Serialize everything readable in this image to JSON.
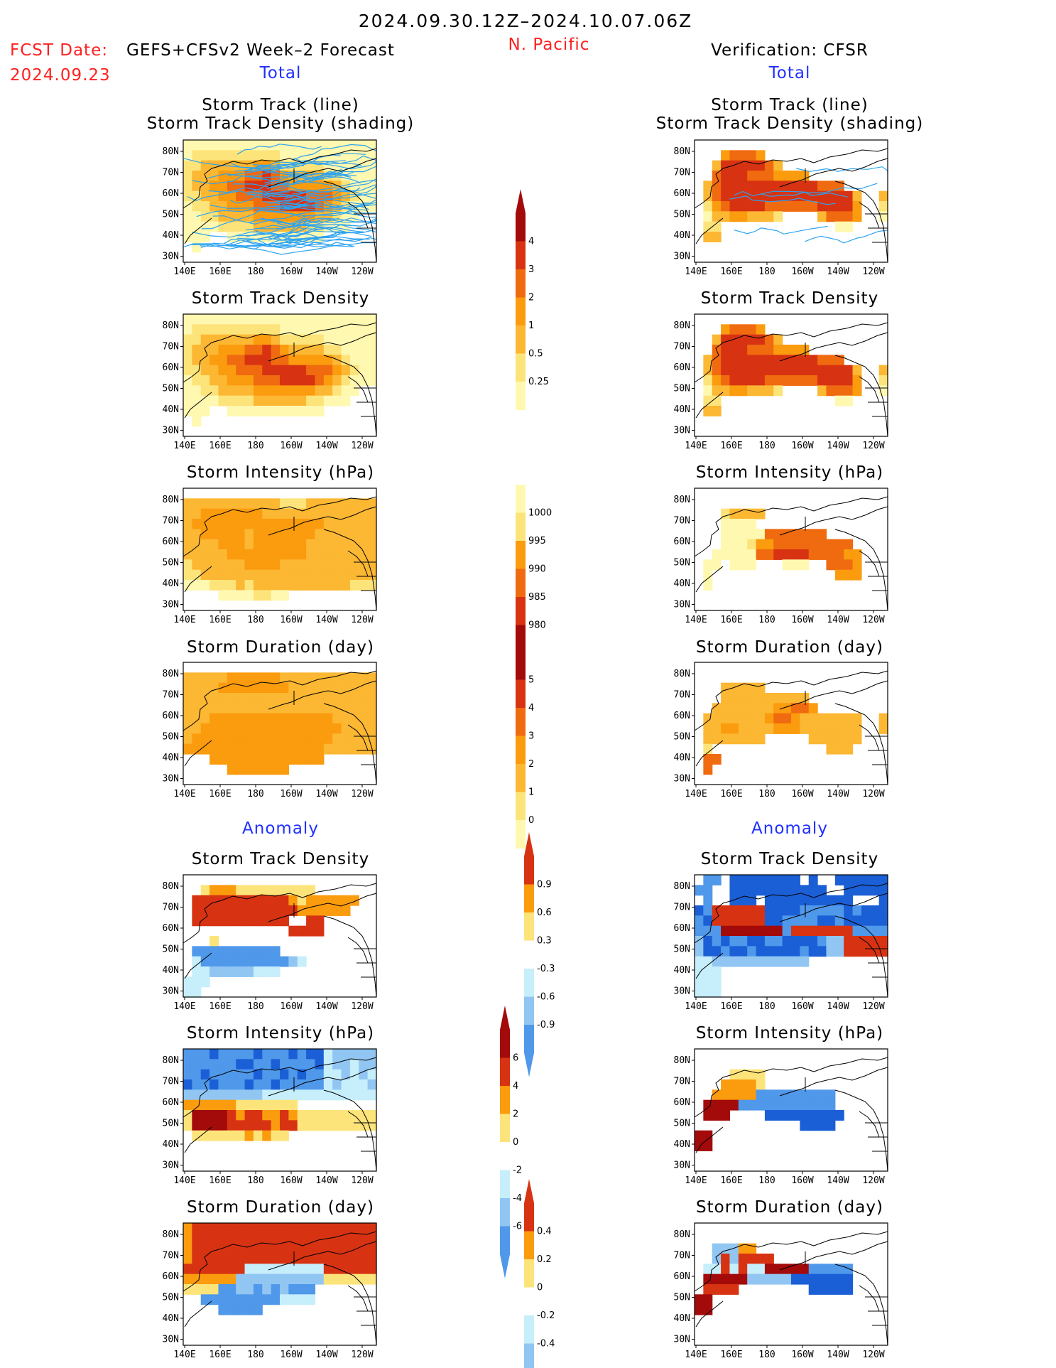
{
  "header": {
    "title": "2024.09.30.12Z–2024.10.07.06Z",
    "fcst_date_label": "FCST Date:",
    "fcst_date": "2024.09.23",
    "forecast_name": "GEFS+CFSv2 Week–2 Forecast",
    "region": "N. Pacific",
    "verification": "Verification: CFSR"
  },
  "sections": {
    "total_left": "Total",
    "total_right": "Total",
    "anomaly_left": "Anomaly",
    "anomaly_right": "Anomaly"
  },
  "panel_titles": {
    "track_line": "Storm Track (line)",
    "track_shading": "Storm Track Density (shading)",
    "density": "Storm Track Density",
    "intensity": "Storm Intensity (hPa)",
    "duration": "Storm Duration (day)"
  },
  "axes": {
    "lon_ticks": [
      "140E",
      "160E",
      "180",
      "160W",
      "140W",
      "120W"
    ],
    "lat_ticks": [
      "80N",
      "70N",
      "60N",
      "50N",
      "40N",
      "30N"
    ]
  },
  "colors": {
    "c0": "#fff8b0",
    "c1": "#fde47a",
    "c2": "#fcb733",
    "c3": "#fb9b0e",
    "c4": "#f06a10",
    "c5": "#d73312",
    "c6": "#a30a0a",
    "n1": "#c7eefb",
    "n2": "#91c6f3",
    "n3": "#4f98ea",
    "n4": "#1b5fd6",
    "track": "#2da3f0"
  },
  "chart_data": [
    {
      "type": "heatmap",
      "title": "Storm Track Density",
      "panel": "forecast-total",
      "colorbar_levels": [
        "0.25",
        "0.5",
        "1",
        "2",
        "3",
        "4"
      ],
      "rows": [
        "1111111111111111111111",
        "1222222222211111111111",
        "2233333344322222111111",
        "2333444556543333221111",
        "2334455666554444432111",
        "2233445556666655543211",
        "1223344455566665432111",
        "1122333344444443321100",
        "1111222233333322111000",
        "1110011111111111000000",
        "0100000000000000000000",
        "0000000000000000000000"
      ]
    },
    {
      "type": "heatmap",
      "title": "Storm Track Density",
      "panel": "verification-total",
      "colorbar_levels": [
        "0.25",
        "0.5",
        "1",
        "2",
        "3",
        "4"
      ],
      "rows": [
        "0000000000000000000000",
        "0004555400000000000000",
        "0036666653000000000000",
        "0056665554444000000000",
        "0356666666666655500000",
        "0356666666666666663003",
        "0245666655555566664002",
        "0133443332000035554001",
        "0220000000000000110000",
        "0330000000000000000000",
        "0000000000000000000000",
        "0000000000000000000000"
      ]
    },
    {
      "type": "heatmap",
      "title": "Storm Intensity (hPa)",
      "panel": "forecast-total",
      "colorbar_levels": [
        "1000",
        "995",
        "990",
        "985",
        "980"
      ],
      "rows": [
        "0000000000000000000000",
        "3333333333322233333333",
        "3344444443333333333333",
        "3444444444444444333333",
        "3344444344444443333333",
        "3333444344444433333333",
        "3333344444444433333333",
        "2333333444433333333333",
        "2233333333333333333333",
        "1112223233333333333222",
        "0000111122110000000000",
        "0000000000000000000000"
      ]
    },
    {
      "type": "heatmap",
      "title": "Storm Intensity (hPa)",
      "panel": "verification-total",
      "colorbar_levels": [
        "1000",
        "995",
        "990",
        "985",
        "980"
      ],
      "rows": [
        "0000000000000000000000",
        "0000000000000000000000",
        "0002333300000000000000",
        "0001111000000000000000",
        "0001111155555550000000",
        "0001112445555555550000",
        "0011111556666555544000",
        "0110111000111005554000",
        "0100000000000000444000",
        "0100000000000000000000",
        "0000000000000000000000",
        "0000000000000000000000"
      ]
    },
    {
      "type": "heatmap",
      "title": "Storm Duration (day)",
      "panel": "forecast-total",
      "colorbar_levels": [
        "0",
        "1",
        "2",
        "3",
        "4",
        "5"
      ],
      "rows": [
        "0000000000000000000000",
        "3333344444433333333333",
        "3333444444443333333333",
        "3333333333333333333333",
        "3333333333333333333333",
        "3334444444444444433333",
        "3344444444444444443333",
        "3444444444444444433333",
        "4444444444444444333333",
        "0004444444444444000000",
        "0000044444440000000000",
        "0000000000000000000000"
      ]
    },
    {
      "type": "heatmap",
      "title": "Storm Duration (day)",
      "panel": "verification-total",
      "colorbar_levels": [
        "0",
        "1",
        "2",
        "3",
        "4",
        "5"
      ],
      "rows": [
        "0000000000000000000000",
        "0000000000000000000000",
        "0003333300000000000000",
        "0003333333333000000000",
        "0033333334455400000000",
        "0333333345543333333003",
        "0334433334443333333003",
        "0333333300000333333000",
        "0200000000000003330000",
        "0550000000000000000000",
        "0500000000000000000000",
        "0000000000000000000000"
      ]
    },
    {
      "type": "heatmap",
      "title": "Storm Track Density",
      "panel": "forecast-anomaly",
      "colorbar_levels": [
        "-0.9",
        "-0.6",
        "-0.3",
        "0.3",
        "0.6",
        "0.9"
      ],
      "rows": [
        "0000000000000000000000",
        "0012221111111110000000",
        "0333333333332122222200",
        "0333333333333222222000",
        "0333333333330033000000",
        "0000000000003333000000",
        "0001000000000000000000",
        "0-3-3-3-3-3-3-3-3-3-3000000000000",
        "0-1-3-3-3-3-3-3-3-3-3-3-2-1000000000",
        "0-1-1-2-2-2-2-2-1-1-1000000000000",
        "-1-1-10000000000000000000",
        "-1-1000000000000000000000"
      ]
    },
    {
      "type": "heatmap",
      "title": "Storm Track Density",
      "panel": "verification-anomaly",
      "colorbar_levels": [
        "-0.9",
        "-0.6",
        "-0.3",
        "0.3",
        "0.6",
        "0.9"
      ],
      "rows": []
    },
    {
      "type": "heatmap",
      "title": "Storm Intensity (hPa)",
      "panel": "forecast-anomaly",
      "colorbar_levels": [
        "-6",
        "-4",
        "-2",
        "0",
        "2",
        "4",
        "6"
      ],
      "rows": []
    },
    {
      "type": "heatmap",
      "title": "Storm Intensity (hPa)",
      "panel": "verification-anomaly",
      "colorbar_levels": [
        "-6",
        "-4",
        "-2",
        "0",
        "2",
        "4",
        "6"
      ],
      "rows": []
    },
    {
      "type": "heatmap",
      "title": "Storm Duration (day)",
      "panel": "forecast-anomaly",
      "colorbar_levels": [
        "-0.4",
        "-0.2",
        "0",
        "0.2",
        "0.4"
      ],
      "rows": []
    },
    {
      "type": "heatmap",
      "title": "Storm Duration (day)",
      "panel": "verification-anomaly",
      "colorbar_levels": [
        "-0.4",
        "-0.2",
        "0",
        "0.2",
        "0.4"
      ],
      "rows": []
    }
  ]
}
